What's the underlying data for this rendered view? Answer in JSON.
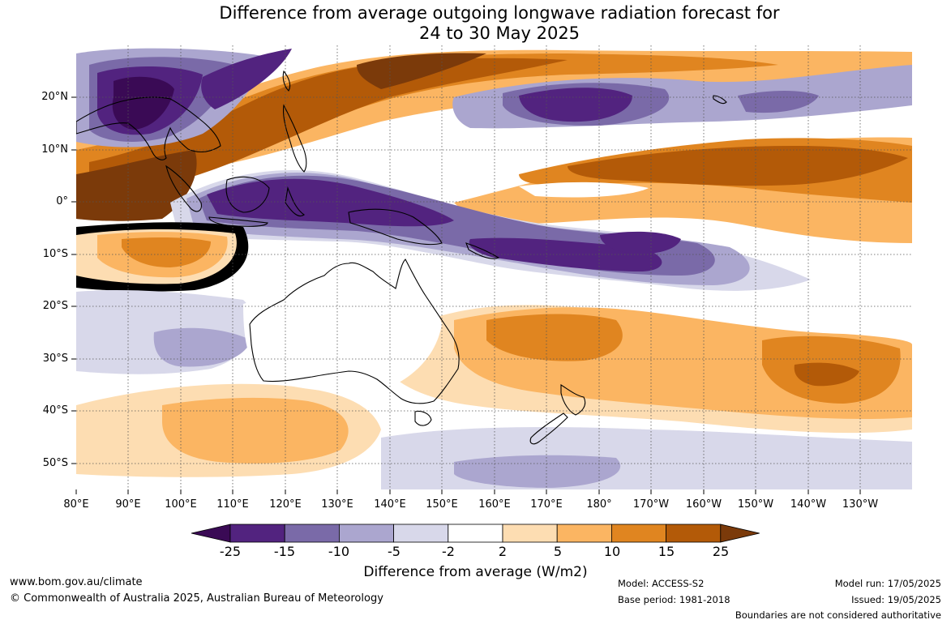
{
  "title_line1": "Difference from average outgoing longwave radiation forecast for",
  "title_line2": "24 to 30 May 2025",
  "lat_labels": [
    "20°N",
    "10°N",
    "0°",
    "10°S",
    "20°S",
    "30°S",
    "40°S",
    "50°S"
  ],
  "lon_labels": [
    "80°E",
    "90°E",
    "100°E",
    "110°E",
    "120°E",
    "130°E",
    "140°E",
    "150°E",
    "160°E",
    "170°E",
    "180°",
    "170°W",
    "160°W",
    "150°W",
    "140°W",
    "130°W"
  ],
  "colorbar": {
    "ticks": [
      "-25",
      "-15",
      "-10",
      "-5",
      "-2",
      "2",
      "5",
      "10",
      "15",
      "25"
    ],
    "colors": [
      "#3a0a55",
      "#52237f",
      "#7a6aa8",
      "#aba6cf",
      "#d8d8ea",
      "#ffffff",
      "#fdddb2",
      "#fbb562",
      "#e08520",
      "#b35a08",
      "#7b3a0a"
    ],
    "label": "Difference from average (W/m2)"
  },
  "footer": {
    "website": "www.bom.gov.au/climate",
    "copyright": "© Commonwealth of Australia 2025, Australian Bureau of Meteorology",
    "model": "Model: ACCESS-S2",
    "base_period": "Base period: 1981-2018",
    "model_run": "Model run: 17/05/2025",
    "issued": "Issued: 19/05/2025",
    "boundaries": "Boundaries are not considered authoritative"
  }
}
